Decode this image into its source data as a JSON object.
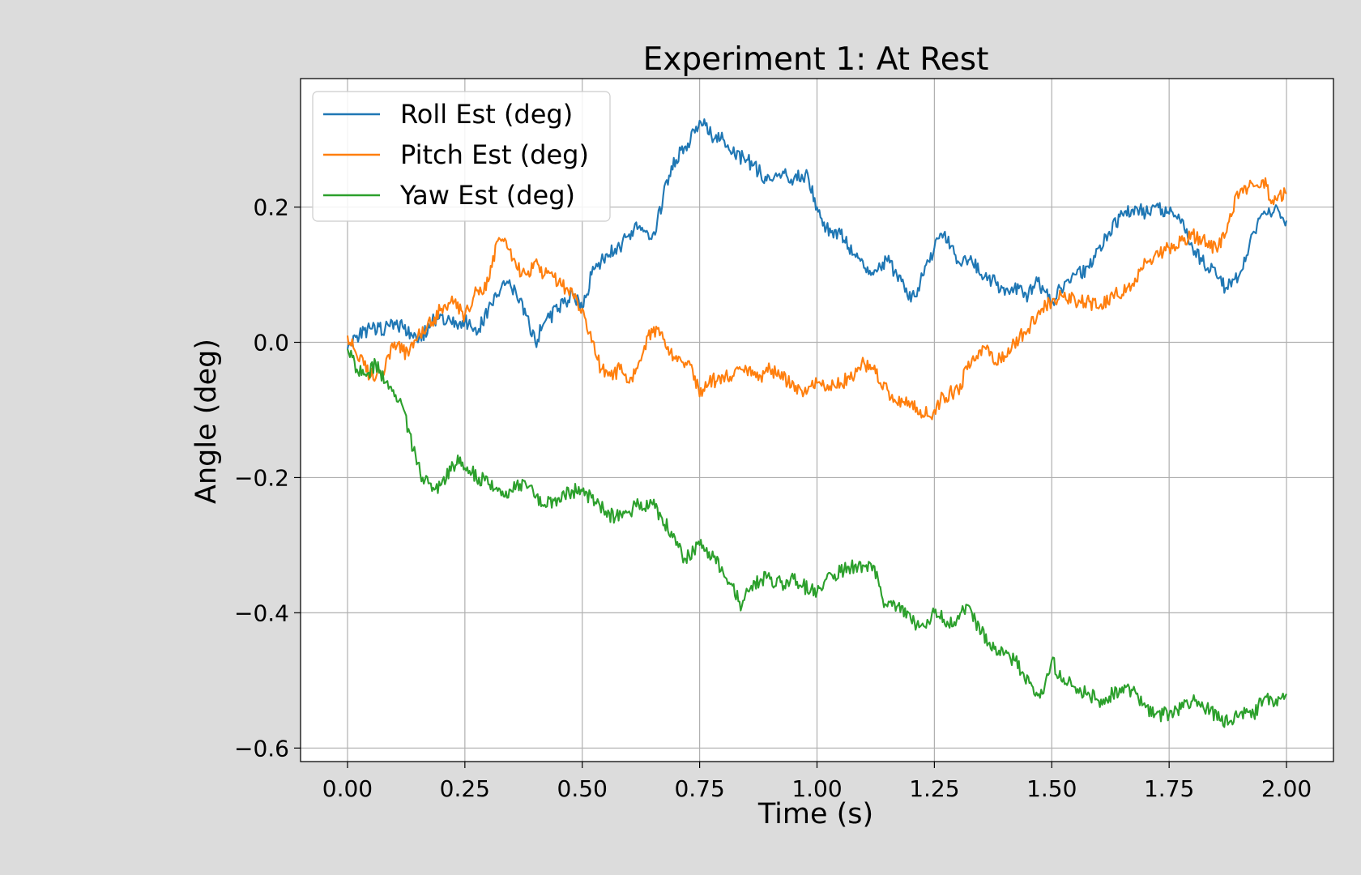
{
  "chart_data": {
    "type": "line",
    "title": "Experiment 1: At Rest",
    "xlabel": "Time (s)",
    "ylabel": "Angle (deg)",
    "xlim": [
      -0.1,
      2.1
    ],
    "ylim": [
      -0.62,
      0.39
    ],
    "xticks": [
      0.0,
      0.25,
      0.5,
      0.75,
      1.0,
      1.25,
      1.5,
      1.75,
      2.0
    ],
    "xtick_labels": [
      "0.00",
      "0.25",
      "0.50",
      "0.75",
      "1.00",
      "1.25",
      "1.50",
      "1.75",
      "2.00"
    ],
    "yticks": [
      -0.6,
      -0.4,
      -0.2,
      0.0,
      0.2
    ],
    "ytick_labels": [
      "−0.6",
      "−0.4",
      "−0.2",
      "0.0",
      "0.2"
    ],
    "grid": true,
    "legend_position": "top-left",
    "background": "#dcdcdc",
    "series": [
      {
        "name": "Roll Est (deg)",
        "color": "#1f77b4",
        "x": [
          0.0,
          0.02,
          0.05,
          0.08,
          0.1,
          0.12,
          0.15,
          0.18,
          0.2,
          0.22,
          0.25,
          0.28,
          0.3,
          0.32,
          0.34,
          0.36,
          0.38,
          0.4,
          0.42,
          0.45,
          0.48,
          0.5,
          0.52,
          0.55,
          0.58,
          0.6,
          0.62,
          0.65,
          0.67,
          0.68,
          0.7,
          0.72,
          0.74,
          0.76,
          0.78,
          0.8,
          0.82,
          0.85,
          0.88,
          0.9,
          0.93,
          0.95,
          0.98,
          1.0,
          1.02,
          1.05,
          1.08,
          1.1,
          1.12,
          1.15,
          1.17,
          1.19,
          1.2,
          1.22,
          1.25,
          1.27,
          1.3,
          1.33,
          1.35,
          1.38,
          1.4,
          1.42,
          1.45,
          1.47,
          1.5,
          1.52,
          1.55,
          1.58,
          1.6,
          1.62,
          1.65,
          1.68,
          1.7,
          1.72,
          1.75,
          1.78,
          1.8,
          1.82,
          1.85,
          1.87,
          1.9,
          1.92,
          1.95,
          1.98,
          2.0
        ],
        "values": [
          -0.01,
          0.01,
          0.02,
          0.02,
          0.03,
          0.02,
          0.0,
          0.03,
          0.04,
          0.03,
          0.03,
          0.02,
          0.05,
          0.07,
          0.09,
          0.07,
          0.04,
          0.0,
          0.03,
          0.05,
          0.07,
          0.05,
          0.1,
          0.13,
          0.14,
          0.16,
          0.17,
          0.16,
          0.2,
          0.24,
          0.27,
          0.29,
          0.31,
          0.33,
          0.3,
          0.3,
          0.28,
          0.27,
          0.25,
          0.24,
          0.25,
          0.24,
          0.25,
          0.2,
          0.17,
          0.16,
          0.13,
          0.11,
          0.1,
          0.12,
          0.1,
          0.08,
          0.06,
          0.09,
          0.14,
          0.16,
          0.12,
          0.12,
          0.1,
          0.09,
          0.07,
          0.08,
          0.07,
          0.09,
          0.06,
          0.08,
          0.1,
          0.11,
          0.14,
          0.16,
          0.19,
          0.2,
          0.19,
          0.2,
          0.19,
          0.18,
          0.14,
          0.12,
          0.1,
          0.08,
          0.1,
          0.14,
          0.19,
          0.2,
          0.18
        ]
      },
      {
        "name": "Pitch Est (deg)",
        "color": "#ff7f0e",
        "x": [
          0.0,
          0.02,
          0.05,
          0.08,
          0.1,
          0.13,
          0.15,
          0.18,
          0.2,
          0.22,
          0.25,
          0.27,
          0.3,
          0.32,
          0.34,
          0.36,
          0.38,
          0.4,
          0.42,
          0.45,
          0.48,
          0.5,
          0.52,
          0.54,
          0.56,
          0.58,
          0.6,
          0.62,
          0.64,
          0.66,
          0.68,
          0.7,
          0.72,
          0.74,
          0.75,
          0.77,
          0.8,
          0.82,
          0.85,
          0.88,
          0.9,
          0.92,
          0.95,
          0.97,
          1.0,
          1.02,
          1.05,
          1.08,
          1.1,
          1.12,
          1.15,
          1.17,
          1.2,
          1.22,
          1.24,
          1.25,
          1.27,
          1.3,
          1.32,
          1.34,
          1.36,
          1.38,
          1.4,
          1.42,
          1.45,
          1.48,
          1.5,
          1.52,
          1.55,
          1.58,
          1.6,
          1.63,
          1.66,
          1.68,
          1.7,
          1.72,
          1.75,
          1.78,
          1.8,
          1.82,
          1.85,
          1.87,
          1.88,
          1.9,
          1.92,
          1.95,
          1.97,
          2.0
        ],
        "values": [
          0.01,
          -0.02,
          -0.05,
          -0.04,
          0.0,
          -0.02,
          0.01,
          0.03,
          0.05,
          0.06,
          0.04,
          0.07,
          0.09,
          0.15,
          0.14,
          0.11,
          0.1,
          0.12,
          0.1,
          0.09,
          0.07,
          0.05,
          0.0,
          -0.04,
          -0.05,
          -0.04,
          -0.06,
          -0.03,
          0.01,
          0.02,
          -0.01,
          -0.02,
          -0.03,
          -0.05,
          -0.08,
          -0.06,
          -0.05,
          -0.05,
          -0.04,
          -0.05,
          -0.04,
          -0.05,
          -0.06,
          -0.08,
          -0.06,
          -0.07,
          -0.06,
          -0.05,
          -0.03,
          -0.04,
          -0.07,
          -0.09,
          -0.09,
          -0.1,
          -0.11,
          -0.1,
          -0.08,
          -0.07,
          -0.04,
          -0.02,
          -0.01,
          -0.03,
          -0.02,
          0.0,
          0.02,
          0.05,
          0.06,
          0.07,
          0.06,
          0.06,
          0.05,
          0.07,
          0.08,
          0.09,
          0.12,
          0.13,
          0.14,
          0.15,
          0.16,
          0.15,
          0.14,
          0.16,
          0.19,
          0.22,
          0.23,
          0.24,
          0.21,
          0.22
        ]
      },
      {
        "name": "Yaw Est (deg)",
        "color": "#2ca02c",
        "x": [
          0.0,
          0.02,
          0.04,
          0.06,
          0.08,
          0.1,
          0.12,
          0.14,
          0.16,
          0.18,
          0.2,
          0.22,
          0.24,
          0.26,
          0.28,
          0.3,
          0.32,
          0.34,
          0.36,
          0.38,
          0.4,
          0.42,
          0.45,
          0.48,
          0.5,
          0.52,
          0.55,
          0.57,
          0.6,
          0.62,
          0.65,
          0.67,
          0.69,
          0.7,
          0.72,
          0.75,
          0.77,
          0.8,
          0.82,
          0.84,
          0.86,
          0.88,
          0.9,
          0.93,
          0.95,
          0.97,
          1.0,
          1.02,
          1.05,
          1.08,
          1.1,
          1.12,
          1.14,
          1.16,
          1.18,
          1.2,
          1.22,
          1.25,
          1.27,
          1.29,
          1.31,
          1.33,
          1.35,
          1.38,
          1.4,
          1.42,
          1.44,
          1.46,
          1.48,
          1.5,
          1.52,
          1.55,
          1.58,
          1.6,
          1.63,
          1.65,
          1.68,
          1.7,
          1.72,
          1.75,
          1.78,
          1.8,
          1.83,
          1.86,
          1.88,
          1.9,
          1.93,
          1.95,
          1.97,
          2.0
        ],
        "values": [
          -0.01,
          -0.04,
          -0.05,
          -0.03,
          -0.06,
          -0.08,
          -0.1,
          -0.16,
          -0.2,
          -0.22,
          -0.21,
          -0.19,
          -0.17,
          -0.19,
          -0.2,
          -0.21,
          -0.22,
          -0.23,
          -0.21,
          -0.21,
          -0.23,
          -0.24,
          -0.23,
          -0.22,
          -0.22,
          -0.23,
          -0.25,
          -0.26,
          -0.25,
          -0.24,
          -0.24,
          -0.26,
          -0.28,
          -0.3,
          -0.32,
          -0.3,
          -0.31,
          -0.34,
          -0.36,
          -0.39,
          -0.36,
          -0.35,
          -0.35,
          -0.36,
          -0.35,
          -0.36,
          -0.37,
          -0.35,
          -0.34,
          -0.33,
          -0.33,
          -0.33,
          -0.38,
          -0.39,
          -0.39,
          -0.41,
          -0.42,
          -0.4,
          -0.41,
          -0.42,
          -0.39,
          -0.4,
          -0.43,
          -0.45,
          -0.46,
          -0.47,
          -0.49,
          -0.51,
          -0.52,
          -0.47,
          -0.5,
          -0.51,
          -0.52,
          -0.53,
          -0.52,
          -0.51,
          -0.52,
          -0.54,
          -0.55,
          -0.55,
          -0.54,
          -0.53,
          -0.54,
          -0.56,
          -0.56,
          -0.55,
          -0.55,
          -0.53,
          -0.53,
          -0.52
        ]
      }
    ]
  }
}
